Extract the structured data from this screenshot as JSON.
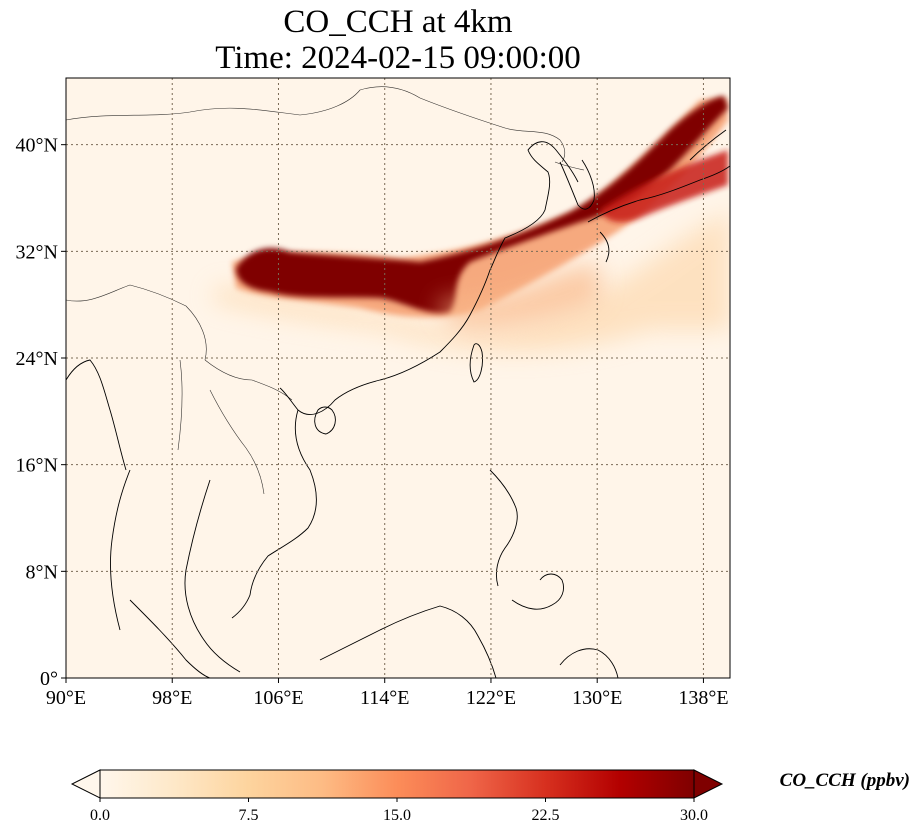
{
  "title_line1": "CO_CCH at 4km",
  "title_line2": "Time: 2024-02-15 09:00:00",
  "map": {
    "extent": {
      "lon": [
        90,
        140
      ],
      "lat": [
        0,
        45
      ]
    },
    "lon_ticks": [
      {
        "value": 90,
        "label": "90°E"
      },
      {
        "value": 98,
        "label": "98°E"
      },
      {
        "value": 106,
        "label": "106°E"
      },
      {
        "value": 114,
        "label": "114°E"
      },
      {
        "value": 122,
        "label": "122°E"
      },
      {
        "value": 130,
        "label": "130°E"
      },
      {
        "value": 138,
        "label": "138°E"
      }
    ],
    "lat_ticks": [
      {
        "value": 0,
        "label": "0°"
      },
      {
        "value": 8,
        "label": "8°N"
      },
      {
        "value": 16,
        "label": "16°N"
      },
      {
        "value": 24,
        "label": "24°N"
      },
      {
        "value": 32,
        "label": "32°N"
      },
      {
        "value": 40,
        "label": "40°N"
      }
    ],
    "gridlines": true,
    "colormap": "OrRd",
    "background_color": "#fff5e9",
    "land_outline_color": "#000000"
  },
  "colorbar": {
    "label": "CO_CCH (ppbv)",
    "range": [
      0,
      30
    ],
    "extend": "both",
    "ticks": [
      {
        "value": 0,
        "label": "0.0"
      },
      {
        "value": 7.5,
        "label": "7.5"
      },
      {
        "value": 15,
        "label": "15.0"
      },
      {
        "value": 22.5,
        "label": "22.5"
      },
      {
        "value": 30,
        "label": "30.0"
      }
    ],
    "stops": [
      "#fff7ec",
      "#fee8c8",
      "#fdd49e",
      "#fdbb84",
      "#fc8d59",
      "#ef6548",
      "#d7301f",
      "#b30000",
      "#7f0000"
    ]
  }
}
